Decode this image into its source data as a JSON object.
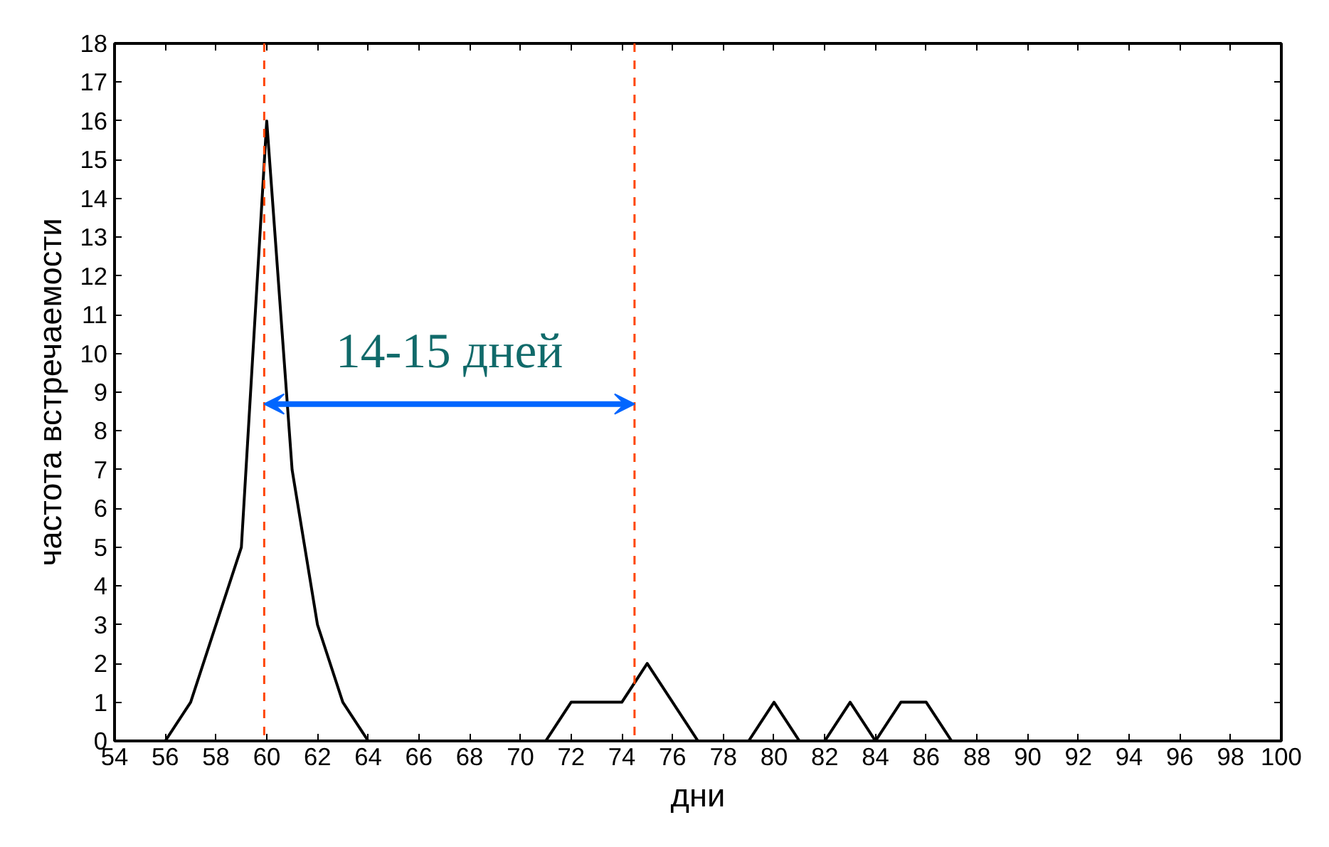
{
  "chart_data": {
    "type": "line",
    "xlabel": "дни",
    "ylabel": "частота встречаемости",
    "x": [
      56,
      57,
      58,
      59,
      60,
      61,
      62,
      63,
      64,
      71,
      72,
      74,
      75,
      77,
      79,
      80,
      81,
      82,
      83,
      84,
      85,
      86,
      87,
      92
    ],
    "series": [
      {
        "color": "#000000",
        "values": [
          0,
          1,
          3,
          5,
          16,
          7,
          3,
          1,
          0,
          0,
          1,
          1,
          2,
          0,
          0,
          1,
          0,
          0,
          1,
          0,
          1,
          1,
          0,
          0
        ]
      }
    ],
    "xlim": [
      54,
      100
    ],
    "xticks": [
      54,
      56,
      58,
      60,
      62,
      64,
      66,
      68,
      70,
      72,
      74,
      76,
      78,
      80,
      82,
      84,
      86,
      88,
      90,
      92,
      94,
      96,
      98,
      100
    ],
    "ylim": [
      0,
      18
    ],
    "yticks": [
      0,
      1,
      2,
      3,
      4,
      5,
      6,
      7,
      8,
      9,
      10,
      11,
      12,
      13,
      14,
      15,
      16,
      17,
      18
    ],
    "ref_lines": [
      {
        "axis": "x",
        "value": 59.9,
        "color": "#ff4500",
        "line_style": "dashed"
      },
      {
        "axis": "x",
        "value": 74.5,
        "color": "#ff4500",
        "line_style": "dashed"
      }
    ],
    "annotations": [
      "14-15 дней"
    ],
    "grid": false,
    "marker": "none",
    "line_style": "solid"
  }
}
